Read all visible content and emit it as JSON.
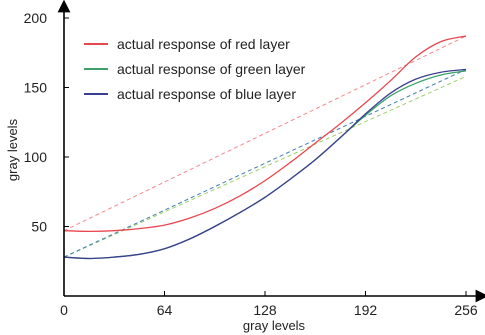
{
  "chart_data": {
    "type": "line",
    "xlabel": "gray levels",
    "ylabel": "gray levels",
    "xlim": [
      0,
      256
    ],
    "ylim": [
      0,
      200
    ],
    "x_ticks": [
      0,
      64,
      128,
      192,
      256
    ],
    "x_tick_labels": [
      "0",
      "64",
      "128",
      "192",
      "256"
    ],
    "y_ticks": [
      50,
      100,
      150,
      200
    ],
    "y_tick_labels": [
      "50",
      "100",
      "150",
      "200"
    ],
    "grid": false,
    "legend_position": "top-left",
    "colors": {
      "red": "#e8474f",
      "green": "#3aa36a",
      "blue": "#3c3f8f",
      "red_fit": "#f28a8e",
      "green_fit": "#9ccf6a",
      "blue_fit": "#3c7fb0"
    },
    "series": [
      {
        "name": "actual response of red layer",
        "style": "solid",
        "color": "#e8474f",
        "x": [
          0,
          16,
          32,
          48,
          64,
          80,
          96,
          112,
          128,
          144,
          160,
          176,
          192,
          208,
          224,
          240,
          256
        ],
        "y": [
          47,
          46.5,
          47,
          48.5,
          51,
          56,
          63,
          72,
          83,
          96,
          110,
          124,
          139,
          155,
          172,
          183,
          187
        ]
      },
      {
        "name": "actual response of green layer",
        "style": "solid",
        "color": "#3aa36a",
        "x": [
          0,
          16,
          32,
          48,
          64,
          80,
          96,
          112,
          128,
          144,
          160,
          176,
          192,
          208,
          224,
          240,
          256
        ],
        "y": [
          28,
          27,
          28,
          30,
          34,
          41,
          50,
          60,
          71,
          84,
          98,
          114,
          130,
          144,
          153,
          159,
          162
        ]
      },
      {
        "name": "actual response of blue layer",
        "style": "solid",
        "color": "#3c3f8f",
        "x": [
          0,
          16,
          32,
          48,
          64,
          80,
          96,
          112,
          128,
          144,
          160,
          176,
          192,
          208,
          224,
          240,
          256
        ],
        "y": [
          28,
          27,
          28,
          30,
          34,
          41,
          50,
          60,
          71,
          84,
          98,
          114,
          131,
          146,
          156,
          161,
          163
        ]
      },
      {
        "style": "dashed",
        "color": "#f28a8e",
        "x": [
          0,
          256
        ],
        "y": [
          47,
          187
        ]
      },
      {
        "style": "dashed",
        "color": "#9ccf6a",
        "x": [
          0,
          256
        ],
        "y": [
          28,
          158
        ]
      },
      {
        "style": "dashed",
        "color": "#3c7fb0",
        "x": [
          0,
          256
        ],
        "y": [
          28,
          163
        ]
      }
    ]
  }
}
